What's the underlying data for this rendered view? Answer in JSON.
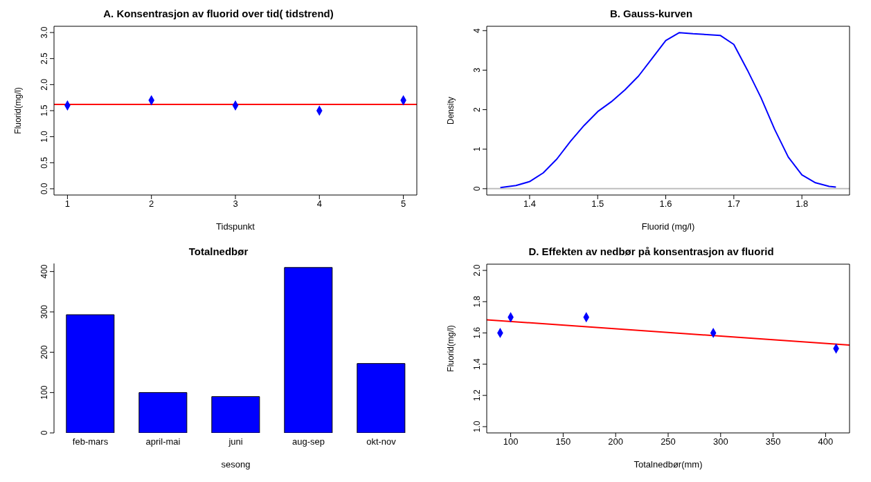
{
  "chart_data": [
    {
      "type": "scatter",
      "title": "A. Konsentrasjon av fluorid over tid( tidstrend)",
      "xlabel": "Tidspunkt",
      "ylabel": "Fluorid(mg/l)",
      "x": [
        1,
        2,
        3,
        4,
        5
      ],
      "values": [
        1.6,
        1.7,
        1.6,
        1.5,
        1.7
      ],
      "color": "#0000ff",
      "marker": "diamond",
      "xlim": [
        0.84,
        5.16
      ],
      "xticks": [
        1,
        2,
        3,
        4,
        5
      ],
      "ylim": [
        -0.12,
        3.12
      ],
      "yticks": [
        {
          "value": 0,
          "label": "0.0"
        },
        0.5,
        {
          "value": 1,
          "label": "1.0"
        },
        1.5,
        {
          "value": 2,
          "label": "2.0"
        },
        2.5,
        {
          "value": 3,
          "label": "3.0"
        }
      ],
      "ref_lines": [
        {
          "axis": "y",
          "value": 1.62,
          "color": "#ff0000"
        }
      ]
    },
    {
      "type": "line",
      "title": "B. Gauss-kurven",
      "xlabel": "Fluorid (mg/l)",
      "ylabel": "Density",
      "x": [
        1.357,
        1.38,
        1.4,
        1.42,
        1.44,
        1.46,
        1.48,
        1.5,
        1.52,
        1.54,
        1.56,
        1.58,
        1.6,
        1.62,
        1.64,
        1.66,
        1.68,
        1.7,
        1.72,
        1.74,
        1.76,
        1.78,
        1.8,
        1.82,
        1.84,
        1.85
      ],
      "values": [
        0.03,
        0.08,
        0.18,
        0.4,
        0.75,
        1.2,
        1.6,
        1.95,
        2.2,
        2.5,
        2.85,
        3.3,
        3.75,
        3.95,
        3.92,
        3.9,
        3.88,
        3.65,
        3.0,
        2.3,
        1.5,
        0.8,
        0.35,
        0.15,
        0.06,
        0.04
      ],
      "color": "#0000ff",
      "xlim": [
        1.337,
        1.87
      ],
      "xticks": [
        1.4,
        1.5,
        1.6,
        1.7,
        1.8
      ],
      "ylim": [
        -0.16,
        4.11
      ],
      "yticks": [
        0,
        1,
        2,
        3,
        4
      ],
      "ref_lines": [
        {
          "axis": "y",
          "value": 0,
          "color": "#bebebe"
        }
      ]
    },
    {
      "type": "bar",
      "title": "Totalnedbør",
      "xlabel": "sesong",
      "categories": [
        "feb-mars",
        "april-mai",
        "juni",
        "aug-sep",
        "okt-nov"
      ],
      "values": [
        293,
        100,
        90,
        410,
        172
      ],
      "color": "#0000ff",
      "ylim": [
        0,
        420
      ],
      "yticks": [
        0,
        100,
        200,
        300,
        400
      ]
    },
    {
      "type": "scatter",
      "title": "D. Effekten av nedbør på konsentrasjon av fluorid",
      "xlabel": "Totalnedbør(mm)",
      "ylabel": "Fluorid(mg/l)",
      "xlim": [
        77.2,
        422.8
      ],
      "xticks": [
        100,
        150,
        200,
        250,
        300,
        350,
        400
      ],
      "ylim": [
        0.96,
        2.04
      ],
      "yticks": [
        {
          "value": 1,
          "label": "1.0"
        },
        1.2,
        1.4,
        1.6,
        1.8,
        {
          "value": 2,
          "label": "2.0"
        }
      ],
      "series": [
        {
          "color": "#0000ff",
          "marker": "diamond",
          "x": [
            293,
            100,
            90,
            410,
            172
          ],
          "values": [
            1.6,
            1.7,
            1.6,
            1.5,
            1.7
          ]
        },
        {
          "type": "line",
          "marker": "none",
          "color": "#ff0000",
          "x": [
            77.2,
            422.8
          ],
          "values": [
            1.684,
            1.522
          ]
        }
      ]
    }
  ]
}
